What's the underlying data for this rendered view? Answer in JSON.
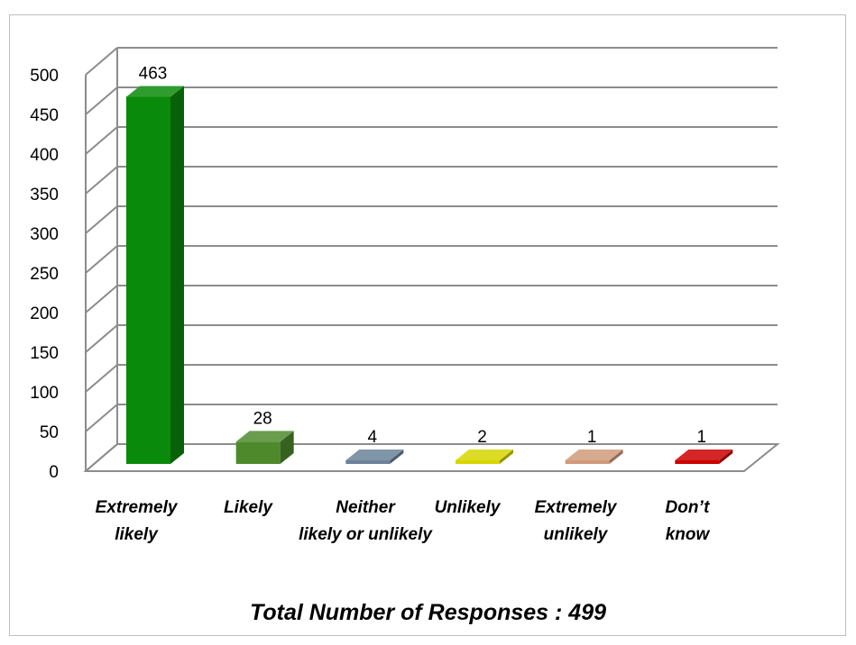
{
  "chart_data": {
    "type": "bar",
    "style": "3d-column",
    "categories": [
      [
        "Extremely",
        "likely"
      ],
      [
        "Likely"
      ],
      [
        "Neither",
        "likely or unlikely"
      ],
      [
        "Unlikely"
      ],
      [
        "Extremely",
        "unlikely"
      ],
      [
        "Don’t",
        "know"
      ]
    ],
    "values": [
      463,
      28,
      4,
      2,
      1,
      1
    ],
    "data_labels": [
      "463",
      "28",
      "4",
      "2",
      "1",
      "1"
    ],
    "colors": [
      "#0a8a0a",
      "#4e8a2c",
      "#6b8299",
      "#d6d600",
      "#d09a7a",
      "#cc0000"
    ],
    "y_ticks": [
      "0",
      "50",
      "100",
      "150",
      "200",
      "250",
      "300",
      "350",
      "400",
      "450",
      "500"
    ],
    "ylim": [
      0,
      500
    ],
    "grid": true,
    "footer": "Total Number of Responses : 499"
  }
}
